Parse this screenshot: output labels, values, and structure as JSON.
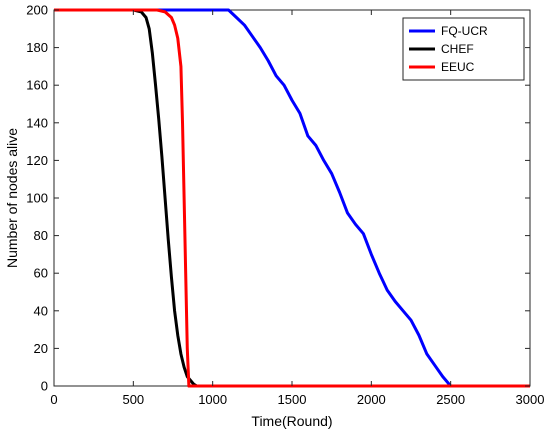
{
  "chart_data": {
    "type": "line",
    "title": "",
    "xlabel": "Time(Round)",
    "ylabel": "Number of nodes alive",
    "xlim": [
      0,
      3000
    ],
    "ylim": [
      0,
      200
    ],
    "xticks": [
      "0",
      "500",
      "1000",
      "1500",
      "2000",
      "2500",
      "3000"
    ],
    "yticks": [
      "0",
      "20",
      "40",
      "60",
      "80",
      "100",
      "120",
      "140",
      "160",
      "180",
      "200"
    ],
    "grid": false,
    "legend_position": "top-right",
    "series": [
      {
        "name": "FQ-UCR",
        "color": "#0000ff",
        "x": [
          0,
          1100,
          1150,
          1200,
          1250,
          1300,
          1350,
          1400,
          1450,
          1500,
          1550,
          1600,
          1650,
          1700,
          1750,
          1800,
          1850,
          1900,
          1950,
          2000,
          2050,
          2100,
          2150,
          2200,
          2250,
          2300,
          2350,
          2400,
          2450,
          2500,
          3000
        ],
        "y": [
          200,
          200,
          196,
          192,
          186,
          180,
          173,
          165,
          160,
          152,
          145,
          133,
          128,
          120,
          113,
          103,
          92,
          86,
          81,
          70,
          60,
          51,
          45,
          40,
          35,
          27,
          17,
          11,
          5,
          0,
          0
        ]
      },
      {
        "name": "CHEF",
        "color": "#000000",
        "x": [
          0,
          500,
          550,
          580,
          600,
          620,
          640,
          660,
          680,
          700,
          720,
          740,
          760,
          780,
          800,
          820,
          840,
          860,
          880,
          900,
          3000
        ],
        "y": [
          200,
          200,
          199,
          196,
          190,
          177,
          160,
          142,
          122,
          100,
          78,
          58,
          40,
          27,
          17,
          10,
          5,
          3,
          1,
          0,
          0
        ]
      },
      {
        "name": "EEUC",
        "color": "#ff0000",
        "x": [
          0,
          650,
          700,
          740,
          760,
          780,
          800,
          810,
          820,
          830,
          840,
          850,
          3000
        ],
        "y": [
          200,
          200,
          199,
          196,
          192,
          185,
          170,
          140,
          100,
          60,
          20,
          0,
          0
        ]
      }
    ]
  }
}
